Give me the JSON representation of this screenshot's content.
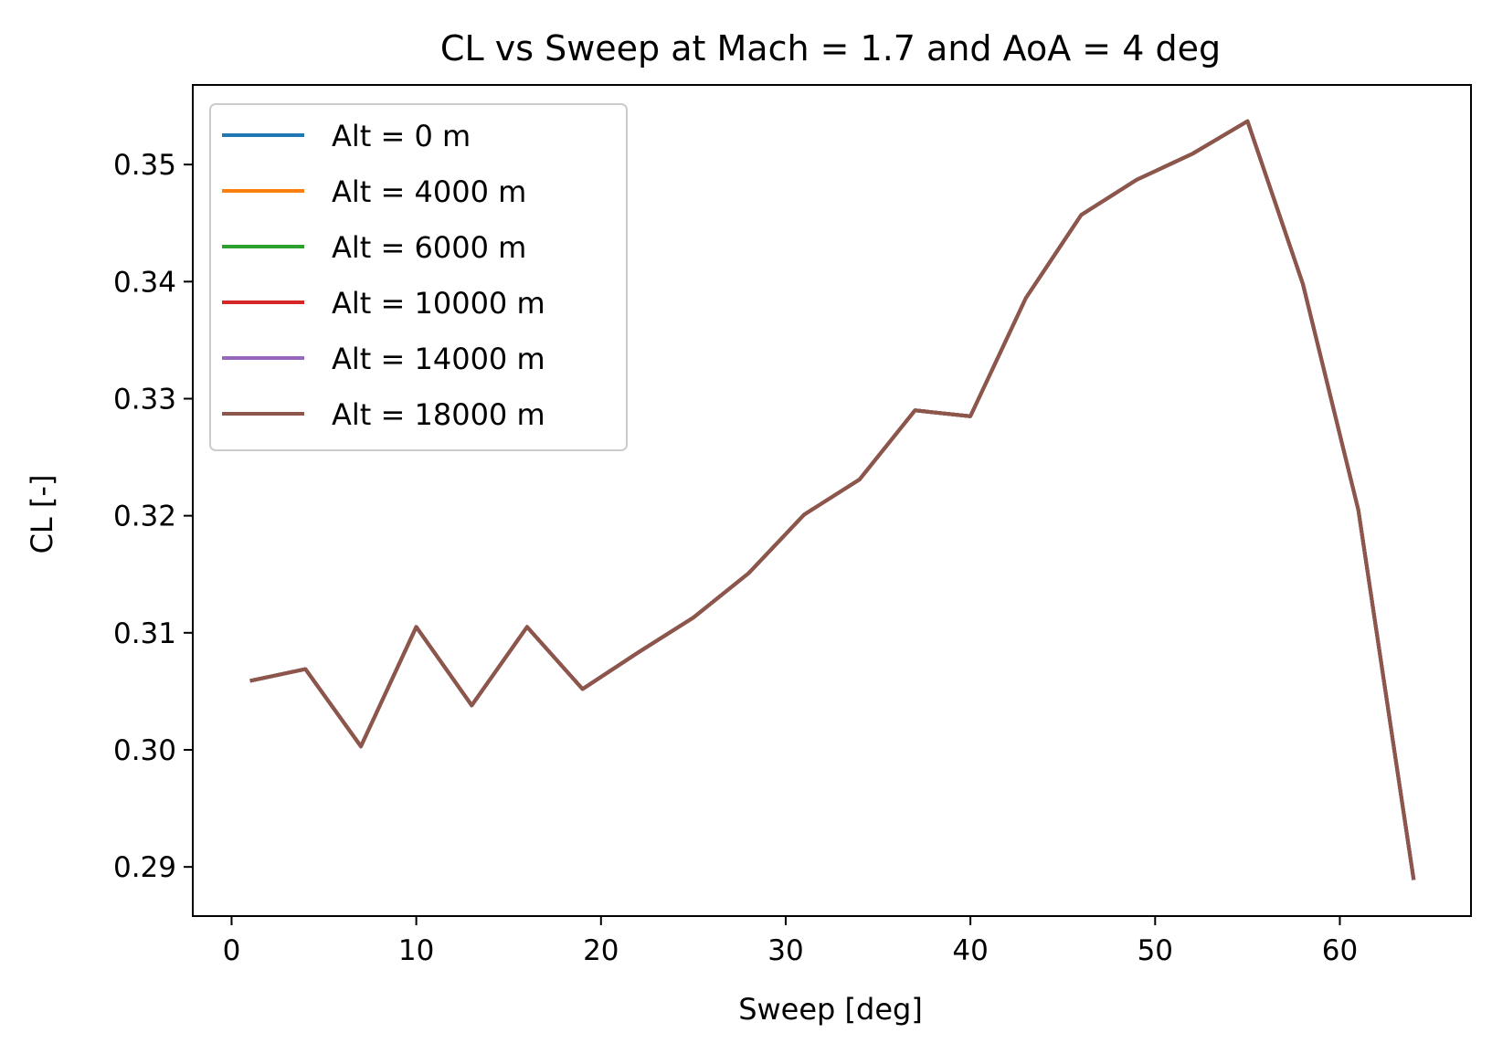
{
  "chart_data": {
    "type": "line",
    "title": "CL vs Sweep at Mach = 1.7 and AoA = 4 deg",
    "xlabel": "Sweep [deg]",
    "ylabel": "CL [-]",
    "xlim": [
      -2.1,
      67.1
    ],
    "ylim": [
      0.2858,
      0.3568
    ],
    "xticks": [
      0,
      10,
      20,
      30,
      40,
      50,
      60
    ],
    "yticks": [
      0.29,
      0.3,
      0.31,
      0.32,
      0.33,
      0.34,
      0.35
    ],
    "xtick_labels": [
      "0",
      "10",
      "20",
      "30",
      "40",
      "50",
      "60"
    ],
    "ytick_labels": [
      "0.29",
      "0.30",
      "0.31",
      "0.32",
      "0.33",
      "0.34",
      "0.35"
    ],
    "grid": false,
    "legend_position": "top-left",
    "x": [
      1,
      4,
      7,
      10,
      13,
      16,
      19,
      22,
      25,
      28,
      31,
      34,
      37,
      40,
      43,
      46,
      49,
      52,
      55,
      58,
      61,
      64
    ],
    "series": [
      {
        "name": "Alt = 0 m",
        "color": "#1f77b4",
        "values": [
          0.3059,
          0.3069,
          0.3003,
          0.3105,
          0.3038,
          0.3105,
          0.3052,
          0.3083,
          0.3113,
          0.3151,
          0.3201,
          0.3231,
          0.329,
          0.3285,
          0.3386,
          0.3457,
          0.3487,
          0.3509,
          0.3537,
          0.3398,
          0.3205,
          0.2889
        ]
      },
      {
        "name": "Alt = 4000 m",
        "color": "#ff7f0e",
        "values": [
          0.3059,
          0.3069,
          0.3003,
          0.3105,
          0.3038,
          0.3105,
          0.3052,
          0.3083,
          0.3113,
          0.3151,
          0.3201,
          0.3231,
          0.329,
          0.3285,
          0.3386,
          0.3457,
          0.3487,
          0.3509,
          0.3537,
          0.3398,
          0.3205,
          0.2889
        ]
      },
      {
        "name": "Alt = 6000 m",
        "color": "#2ca02c",
        "values": [
          0.3059,
          0.3069,
          0.3003,
          0.3105,
          0.3038,
          0.3105,
          0.3052,
          0.3083,
          0.3113,
          0.3151,
          0.3201,
          0.3231,
          0.329,
          0.3285,
          0.3386,
          0.3457,
          0.3487,
          0.3509,
          0.3537,
          0.3398,
          0.3205,
          0.2889
        ]
      },
      {
        "name": "Alt = 10000 m",
        "color": "#d62728",
        "values": [
          0.3059,
          0.3069,
          0.3003,
          0.3105,
          0.3038,
          0.3105,
          0.3052,
          0.3083,
          0.3113,
          0.3151,
          0.3201,
          0.3231,
          0.329,
          0.3285,
          0.3386,
          0.3457,
          0.3487,
          0.3509,
          0.3537,
          0.3398,
          0.3205,
          0.2889
        ]
      },
      {
        "name": "Alt = 14000 m",
        "color": "#9467bd",
        "values": [
          0.3059,
          0.3069,
          0.3003,
          0.3105,
          0.3038,
          0.3105,
          0.3052,
          0.3083,
          0.3113,
          0.3151,
          0.3201,
          0.3231,
          0.329,
          0.3285,
          0.3386,
          0.3457,
          0.3487,
          0.3509,
          0.3537,
          0.3398,
          0.3205,
          0.2889
        ]
      },
      {
        "name": "Alt = 18000 m",
        "color": "#8c564b",
        "values": [
          0.3059,
          0.3069,
          0.3003,
          0.3105,
          0.3038,
          0.3105,
          0.3052,
          0.3083,
          0.3113,
          0.3151,
          0.3201,
          0.3231,
          0.329,
          0.3285,
          0.3386,
          0.3457,
          0.3487,
          0.3509,
          0.3537,
          0.3398,
          0.3205,
          0.2889
        ]
      }
    ]
  }
}
